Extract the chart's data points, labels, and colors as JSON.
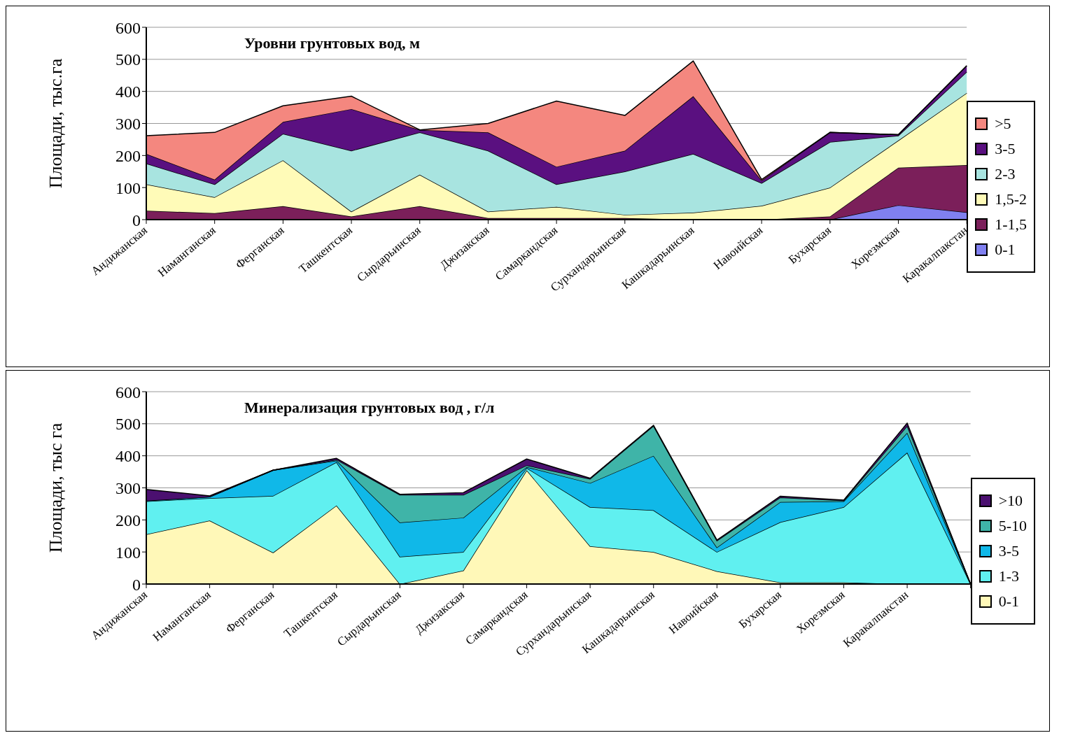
{
  "chart_data": [
    {
      "type": "area",
      "title": "Уровни грунтовых вод, м",
      "ylabel": "Площади, тыс.га",
      "stacked": true,
      "grid": "y",
      "legend": "right",
      "ylim": [
        0,
        600
      ],
      "yticks": [
        0,
        100,
        200,
        300,
        400,
        500,
        600
      ],
      "categories": [
        "Андижанская",
        "Наманганская",
        "Ферганская",
        "Ташкентская",
        "Сырдарьинская",
        "Джизакская",
        "Самаркандская",
        "Сурхандарьинская",
        "Кашкадарьинская",
        "Навоийская",
        "Бухарская",
        "Хорезмская",
        "Каракалпакстан"
      ],
      "series": [
        {
          "name": "0-1",
          "color": "#8080f0",
          "values": [
            0,
            0,
            0,
            0,
            0,
            0,
            0,
            0,
            0,
            0,
            0,
            45,
            23
          ]
        },
        {
          "name": "1-1,5",
          "color": "#7b1f5a",
          "values": [
            28,
            20,
            42,
            10,
            42,
            5,
            5,
            5,
            0,
            0,
            10,
            117,
            147
          ]
        },
        {
          "name": "1,5-2",
          "color": "#fffbb8",
          "values": [
            82,
            50,
            143,
            15,
            98,
            20,
            35,
            10,
            22,
            43,
            90,
            85,
            225
          ]
        },
        {
          "name": "2-3",
          "color": "#a8e4e0",
          "values": [
            65,
            40,
            83,
            190,
            132,
            190,
            70,
            135,
            183,
            71,
            142,
            15,
            66
          ]
        },
        {
          "name": "3-5",
          "color": "#5a1080",
          "values": [
            30,
            15,
            37,
            130,
            8,
            57,
            55,
            65,
            180,
            8,
            30,
            3,
            19
          ]
        },
        {
          "name": ">5",
          "color": "#f4877f",
          "values": [
            57,
            147,
            50,
            40,
            0,
            28,
            205,
            110,
            110,
            3,
            0,
            0,
            0
          ]
        }
      ]
    },
    {
      "type": "area",
      "title": "Минерализация грунтовых вод , г/л",
      "ylabel": "Площади, тыс га",
      "stacked": true,
      "grid": "y",
      "legend": "right",
      "ylim": [
        0,
        600
      ],
      "yticks": [
        0,
        100,
        200,
        300,
        400,
        500,
        600
      ],
      "categories": [
        "Андижанская",
        "Наманганская",
        "Ферганская",
        "Ташкентская",
        "Сырдарьинская",
        "Джизакская",
        "Самаркандская",
        "Сурхандарьинская",
        "Кашкадарьинская",
        "Навоийская",
        "Бухарская",
        "Хорезмская",
        "Каракалпакстан",
        null
      ],
      "series": [
        {
          "name": "0-1",
          "color": "#fff8b8",
          "values": [
            155,
            198,
            98,
            245,
            0,
            42,
            355,
            118,
            100,
            40,
            5,
            5,
            0,
            0
          ]
        },
        {
          "name": "1-3",
          "color": "#60f0f0",
          "values": [
            103,
            70,
            177,
            135,
            85,
            58,
            7,
            122,
            130,
            60,
            188,
            235,
            410,
            0
          ]
        },
        {
          "name": "3-5",
          "color": "#10b8e8",
          "values": [
            2,
            4,
            80,
            5,
            107,
            107,
            3,
            75,
            170,
            14,
            63,
            18,
            62,
            0
          ]
        },
        {
          "name": "5-10",
          "color": "#3fb4a8",
          "values": [
            0,
            0,
            0,
            3,
            86,
            71,
            5,
            13,
            93,
            21,
            14,
            2,
            21,
            0
          ]
        },
        {
          "name": ">10",
          "color": "#4b1070",
          "values": [
            35,
            3,
            0,
            4,
            2,
            7,
            20,
            2,
            2,
            2,
            4,
            2,
            9,
            0
          ]
        }
      ]
    }
  ]
}
